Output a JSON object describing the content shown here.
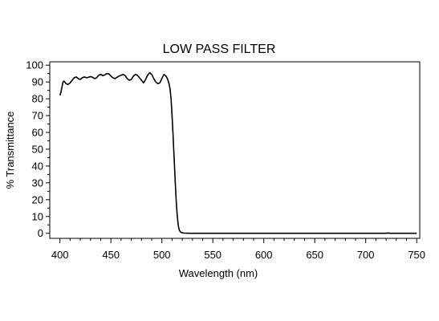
{
  "chart_data": {
    "type": "line",
    "title": "LOW PASS FILTER",
    "xlabel": "Wavelength (nm)",
    "ylabel": "% Transmittance",
    "xlim": [
      390,
      753
    ],
    "ylim": [
      -3,
      102
    ],
    "xticks": [
      400,
      450,
      500,
      550,
      600,
      650,
      700,
      750
    ],
    "yticks": [
      0,
      10,
      20,
      30,
      40,
      50,
      60,
      70,
      80,
      90,
      100
    ],
    "grid": false,
    "series": [
      {
        "color": "#000000",
        "x": [
          400,
          401,
          402,
          403,
          404,
          406,
          408,
          410,
          412,
          414,
          416,
          418,
          420,
          422,
          424,
          426,
          428,
          430,
          432,
          434,
          436,
          438,
          440,
          442,
          444,
          446,
          448,
          450,
          452,
          454,
          456,
          458,
          460,
          462,
          464,
          466,
          468,
          470,
          472,
          474,
          476,
          478,
          480,
          482,
          484,
          486,
          488,
          490,
          492,
          494,
          496,
          498,
          500,
          502,
          504,
          505,
          506,
          507,
          508,
          509,
          510,
          511,
          512,
          513,
          514,
          515,
          516,
          517,
          518,
          519,
          520,
          521,
          522,
          524,
          526,
          530,
          540,
          560,
          600,
          650,
          700,
          720,
          722,
          724,
          726,
          750
        ],
        "y": [
          82,
          84,
          87,
          90,
          90.5,
          89,
          88.5,
          89.5,
          91,
          92.5,
          93,
          92,
          91.5,
          92.5,
          93,
          92.5,
          92.8,
          93.2,
          92.8,
          92,
          92.5,
          94,
          94.5,
          93.8,
          94.2,
          95,
          94.8,
          93.5,
          92.5,
          92,
          92.8,
          93.5,
          94,
          94.5,
          93.8,
          92,
          91,
          91.5,
          93.5,
          94.5,
          94,
          92.5,
          91,
          89.5,
          91.5,
          94,
          95.5,
          94.5,
          92,
          90,
          89,
          89.5,
          92,
          94.5,
          93.5,
          92.5,
          91,
          89,
          86,
          80,
          70,
          58,
          45,
          32,
          20,
          11,
          5,
          2,
          1,
          0.5,
          0.3,
          0.2,
          0.1,
          0.05,
          0,
          0,
          0,
          0,
          0,
          0,
          0,
          0,
          0.2,
          0,
          0,
          0
        ]
      }
    ]
  }
}
